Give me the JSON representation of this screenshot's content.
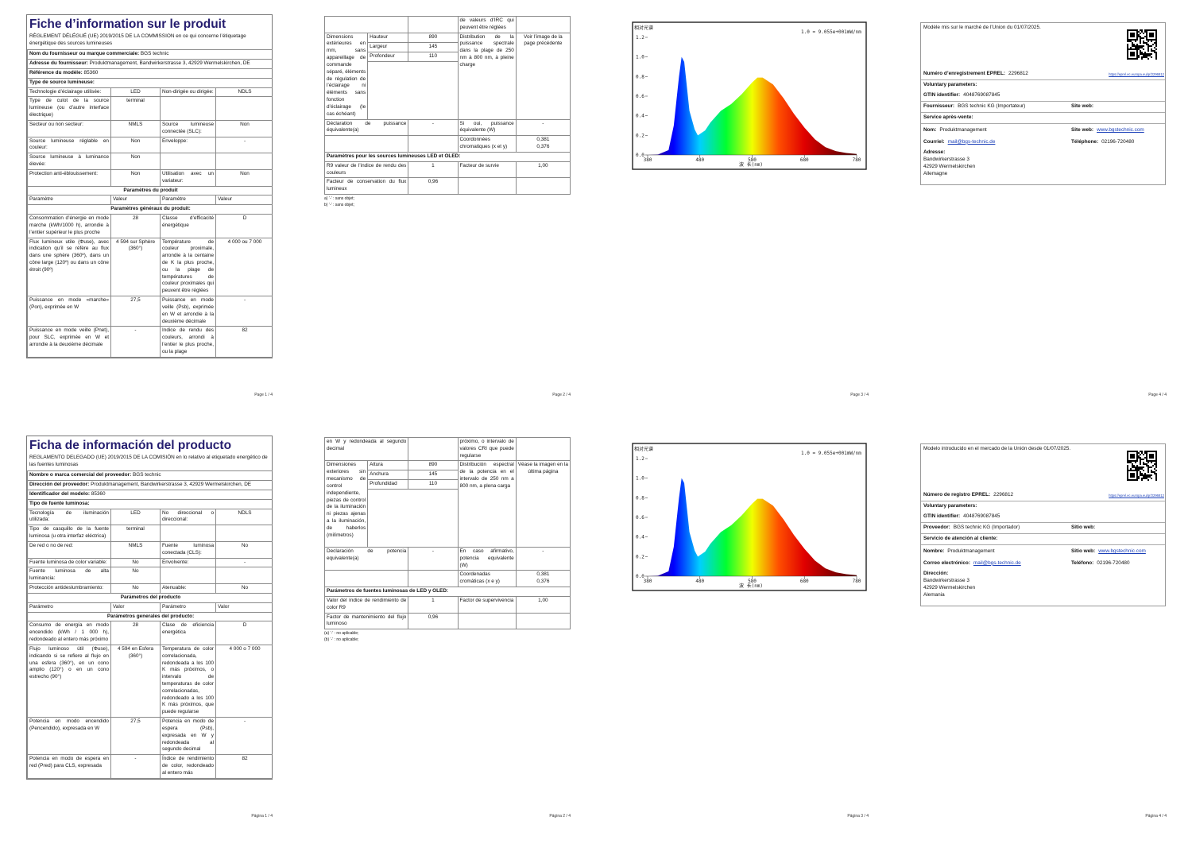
{
  "chart_data": [
    {
      "type": "area",
      "title": "相对光谱",
      "annotation": "1.0 = 9.055e+001mW/nm",
      "xlabel": "波 长(nm)",
      "x": [
        380,
        400,
        420,
        430,
        440,
        445,
        450,
        455,
        460,
        470,
        476,
        490,
        500,
        520,
        540,
        560,
        580,
        590,
        600,
        620,
        640,
        660,
        680,
        700,
        720,
        740,
        760,
        780
      ],
      "values": [
        0,
        0.005,
        0.05,
        0.3,
        0.8,
        1.0,
        0.95,
        0.7,
        0.45,
        0.26,
        0.2,
        0.25,
        0.33,
        0.45,
        0.52,
        0.62,
        0.74,
        0.79,
        0.79,
        0.72,
        0.58,
        0.42,
        0.28,
        0.16,
        0.08,
        0.04,
        0.02,
        0.01
      ],
      "xlim": [
        380,
        780
      ],
      "ylim": [
        0,
        1.2
      ],
      "xticks": [
        380,
        480,
        580,
        680,
        780
      ],
      "yticks": [
        {
          "value": 0,
          "label": "0.0"
        },
        0.2,
        0.4,
        0.6,
        0.8,
        {
          "value": 1,
          "label": "1.0"
        },
        1.2
      ],
      "colors": [
        "#3a0070",
        "#0000ff",
        "#00d0ff",
        "#00ff30",
        "#f0ff00",
        "#ff5000",
        "#e00000",
        "#900000",
        "#500000"
      ]
    },
    {
      "type": "area",
      "title": "相对光谱",
      "annotation": "1.0 = 9.055e+001mW/nm",
      "xlabel": "波 长(nm)",
      "x": [
        380,
        400,
        420,
        430,
        440,
        445,
        450,
        455,
        460,
        470,
        476,
        490,
        500,
        520,
        540,
        560,
        580,
        590,
        600,
        620,
        640,
        660,
        680,
        700,
        720,
        740,
        760,
        780
      ],
      "values": [
        0,
        0.005,
        0.05,
        0.3,
        0.8,
        1.0,
        0.95,
        0.7,
        0.45,
        0.26,
        0.2,
        0.25,
        0.33,
        0.45,
        0.52,
        0.62,
        0.74,
        0.79,
        0.79,
        0.72,
        0.58,
        0.42,
        0.28,
        0.16,
        0.08,
        0.04,
        0.02,
        0.01
      ],
      "xlim": [
        380,
        780
      ],
      "ylim": [
        0,
        1.2
      ],
      "xticks": [
        380,
        480,
        580,
        680,
        780
      ],
      "yticks": [
        {
          "value": 0,
          "label": "0.0"
        },
        0.2,
        0.4,
        0.6,
        0.8,
        {
          "value": 1,
          "label": "1.0"
        },
        1.2
      ],
      "colors": [
        "#3a0070",
        "#0000ff",
        "#00d0ff",
        "#00ff30",
        "#f0ff00",
        "#ff5000",
        "#e00000",
        "#900000",
        "#500000"
      ]
    }
  ],
  "sheets": [
    {
      "page1": {
        "title": "Fiche d’information sur le produit",
        "subtitle": "RÈGLEMENT DÉLÉGUÉ (UE) 2019/2015 DE LA COMMISSION en ce qui concerne l’étiquetage énergétique des sources lumineuses",
        "info": [
          [
            "Nom du fournisseur ou marque commerciale:",
            "BGS technic"
          ],
          [
            "Adresse du fournisseur:",
            "Produktmanagement, Bandwirkerstrasse 3, 42929 Wermelskirchen, DE"
          ],
          [
            "Référence du modèle:",
            "85360"
          ]
        ],
        "type_heading": "Type de source lumineuse:",
        "type_rows": [
          [
            "Technologie d’éclairage utilisée:",
            "LED",
            "Non-dirigée ou dirigée:",
            "NDLS"
          ],
          [
            "Type de culot de la source lumineuse (ou d’autre interface électrique)",
            "terminal",
            null,
            null
          ],
          [
            "Secteur ou non secteur:",
            "NMLS",
            "Source lumineuse connectée (SLC):",
            "Non"
          ],
          [
            "Source lumineuse réglable en couleur:",
            "Non",
            "Enveloppe:",
            "-"
          ],
          [
            "Source lumineuse à luminance élevée:",
            "Non",
            null,
            null
          ],
          [
            "Protection anti-éblouissement:",
            "Non",
            "Utilisation avec un variateur:",
            "Non"
          ]
        ],
        "params_heading": "Paramètres du produit",
        "params_header": [
          "Paramètre",
          "Valeur",
          "Paramètre",
          "Valeur"
        ],
        "general_heading": "Paramètres généraux du produit:",
        "general_rows": [
          [
            "Consommation d’énergie en mode marche (kWh/1000 h), arrondie à l’entier supérieur le plus proche",
            "28",
            "Classe d’efficacité énergétique",
            "D"
          ],
          [
            "Flux lumineux utile (Φuse), avec indication qu’il se réfère au flux dans une sphère (360º), dans un cône large (120º) ou dans un cône étroit (90º)",
            "4 594 sur Sphère (360°)",
            "Température de couleur proximale, arrondie à la centaine de K la plus proche, ou la plage de températures de couleur proximales qui peuvent être réglées",
            "4 000 ou 7 000"
          ],
          [
            "Puissance en mode «marche» (Pon), exprimée en W",
            "27,5",
            "Puissance en mode veille (Psb), exprimée en W et arrondie à la deuxième décimale",
            "-"
          ],
          [
            "Puissance en mode veille (Pnet), pour SLC, exprimée en W et arrondie à la deuxième décimale",
            "-",
            "Indice de rendu des couleurs, arrondi à l’entier le plus proche, ou la plage",
            "82"
          ]
        ],
        "footer": "Page 1 / 4"
      },
      "page2": {
        "cont": [
          null,
          null,
          "de valeurs d’IRC qui peuvent être réglées",
          null
        ],
        "dimensions": {
          "label": "Dimensions extérieures en mm, sans appareillage de commande séparé, éléments de régulation de l’éclairage ni éléments sans fonction d’éclairage (le cas échéant)",
          "parts": [
            [
              "Hauteur",
              "890"
            ],
            [
              "Largeur",
              "145"
            ],
            [
              "Profondeur",
              "110"
            ]
          ],
          "param": "Distribution de la puissance spectrale dans la plage de 250 nm à 800 nm, à pleine charge",
          "value": "Voir l’image de la page précédente"
        },
        "rows": [
          [
            "Déclaration de puissance équivalente(a)",
            "-",
            "Si oui, puissance équivalente (W)",
            "-"
          ],
          [
            null,
            null,
            "Coordonnées chromatiques (x et y)",
            [
              "0,381",
              "0,376"
            ]
          ]
        ],
        "led_heading": "Paramètres pour les sources lumineuses LED et OLED:",
        "led_rows": [
          [
            "R9 valeur de l’indice de rendu des couleurs",
            "1",
            "Facteur de survie",
            "1,00"
          ],
          [
            "Facteur de conservation du flux lumineux",
            "0,96",
            null,
            null
          ]
        ],
        "notes": [
          "a) ‘-’ : sans objet;",
          "b) ‘-’ : sans objet;"
        ],
        "footer": "Page 2 / 4"
      },
      "page3": {
        "footer": "Page 3 / 4"
      },
      "page4": {
        "intro": "Modèle mis sur le marché de l’Union du 01/07/2025.",
        "eprel": {
          "label": "Numéro d’enregistrement EPREL:",
          "value": "2296812",
          "link": "https://eprel.ec.europa.eu/qr/2296812"
        },
        "voluntary": "Voluntary parameters:",
        "gtin": {
          "label": "GTIN identifier:",
          "value": "4048769087845"
        },
        "supplier": {
          "label": "Fournisseur:",
          "value": "BGS technic KG (Importateur)",
          "web_label": "Site web:"
        },
        "service": "Service après-vente:",
        "contact": [
          [
            {
              "label": "Nom:",
              "value": "Produktmanagement"
            },
            {
              "label": "Site web:",
              "value": "www.bgstechnic.com"
            }
          ],
          [
            {
              "label": "Courriel:",
              "value": "mail@bgs-technic.de"
            },
            {
              "label": "Téléphone:",
              "value": "02196-720480"
            }
          ]
        ],
        "address": {
          "label": "Adresse:",
          "lines": [
            "Bandwirkerstrasse 3",
            "42929 Wermelskirchen",
            "Allemagne"
          ]
        },
        "footer": "Page 4 / 4"
      }
    },
    {
      "page1": {
        "title": "Ficha de información del producto",
        "subtitle": "REGLAMENTO DELEGADO (UE) 2019/2015 DE LA COMISIÓN en lo relativo al etiquetado energético de las fuentes luminosas",
        "info": [
          [
            "Nombre o marca comercial del proveedor:",
            "BGS technic"
          ],
          [
            "Dirección del proveedor:",
            "Produktmanagement, Bandwirkerstrasse 3, 42929 Wermelskirchen, DE"
          ],
          [
            "Identificador del modelo:",
            "85360"
          ]
        ],
        "type_heading": "Tipo de fuente luminosa:",
        "type_rows": [
          [
            "Tecnología de iluminación utilizada:",
            "LED",
            "No direccional o direccional:",
            "NDLS"
          ],
          [
            "Tipo de casquillo de la fuente luminosa (u otra interfaz eléctrica)",
            "terminal",
            null,
            null
          ],
          [
            "De red o no de red:",
            "NMLS",
            "Fuente luminosa conectada (CLS):",
            "No"
          ],
          [
            "Fuente luminosa de color variable:",
            "No",
            "Envolvente:",
            "-"
          ],
          [
            "Fuente luminosa de alta luminancia:",
            "No",
            null,
            null
          ],
          [
            "Protección antideslumbramiento:",
            "No",
            "Atenuable:",
            "No"
          ]
        ],
        "params_heading": "Parámetros del producto",
        "params_header": [
          "Parámetro",
          "Valor",
          "Parámetro",
          "Valor"
        ],
        "general_heading": "Parámetros generales del producto:",
        "general_rows": [
          [
            "Consumo de energía en modo encendido (kWh / 1 000 h), redondeado al entero más próximo",
            "28",
            "Clase de eficiencia energética",
            "D"
          ],
          [
            "Flujo luminoso útil (Φuse), indicando si se refiere al flujo en una esfera (360°), en un cono amplio (120°) o en un cono estrecho (90°)",
            "4 594 en Esfera (360°)",
            "Temperatura de color correlacionada, redondeada a los 100 K más próximos, o intervalo de temperaturas de color correlacionadas, redondeado a los 100 K más próximos, que puede regularse",
            "4 000 o 7 000"
          ],
          [
            "Potencia en modo encendido (Pencendido), expresada en W",
            "27,5",
            "Potencia en modo de espera (Psb), expresada en W y redondeada al segundo decimal",
            "-"
          ],
          [
            "Potencia en modo de espera en red (Pred) para CLS, expresada",
            "-",
            "Índice de rendimiento de color, redondeado al entero más",
            "82"
          ]
        ],
        "footer": "Página 1 / 4"
      },
      "page2": {
        "cont": [
          "en W y redondeada al segundo decimal",
          null,
          "próximo, o intervalo de valores CRI que puede regularse",
          null
        ],
        "dimensions": {
          "label": "Dimensiones exteriores sin mecanismo de control independiente, piezas de control de la iluminación ni piezas ajenas a la iluminación, de haberlos (milímetros)",
          "parts": [
            [
              "Altura",
              "890"
            ],
            [
              "Anchura",
              "145"
            ],
            [
              "Profundidad",
              "110"
            ]
          ],
          "param": "Distribución espectral de la potencia en el intervalo de 250 nm a 800 nm, a plena carga",
          "value": "Véase la imagen en la última página"
        },
        "rows": [
          [
            "Declaración de potencia equivalente(a)",
            "-",
            "En caso afirmativo, potencia equivalente (W)",
            "-"
          ],
          [
            null,
            null,
            "Coordenadas cromáticas (x e y)",
            [
              "0,381",
              "0,376"
            ]
          ]
        ],
        "led_heading": "Parámetros de fuentes luminosas de LED y OLED:",
        "led_rows": [
          [
            "Valor del índice de rendimiento de color R9",
            "1",
            "Factor de supervivencia",
            "1,00"
          ],
          [
            "Factor de mantenimiento del flujo luminoso",
            "0,96",
            null,
            null
          ]
        ],
        "notes": [
          "(a) ‘-’ : no aplicable;",
          "(b) ‘-’ : no aplicable;"
        ],
        "footer": "Página 2 / 4"
      },
      "page3": {
        "footer": "Página 3 / 4"
      },
      "page4": {
        "intro": "Modelo introducido en el mercado de la Unión desde 01/07/2025.",
        "eprel": {
          "label": "Número de registro EPREL:",
          "value": "2296812",
          "link": "https://eprel.ec.europa.eu/qr/2296812"
        },
        "voluntary": "Voluntary parameters:",
        "gtin": {
          "label": "GTIN identifier:",
          "value": "4048769087845"
        },
        "supplier": {
          "label": "Proveedor:",
          "value": "BGS technic KG (Importador)",
          "web_label": "Sitio web:"
        },
        "service": "Servicio de atención al cliente:",
        "contact": [
          [
            {
              "label": "Nombre:",
              "value": "Produktmanagement"
            },
            {
              "label": "Sitio web:",
              "value": "www.bgstechnic.com"
            }
          ],
          [
            {
              "label": "Correo electrónico:",
              "value": "mail@bgs-technic.de"
            },
            {
              "label": "Teléfono:",
              "value": "02196-720480"
            }
          ]
        ],
        "address": {
          "label": "Dirección:",
          "lines": [
            "Bandwirkerstrasse 3",
            "42929 Wermelskirchen",
            "Alemania"
          ]
        },
        "footer": "Página 4 / 4"
      }
    }
  ]
}
